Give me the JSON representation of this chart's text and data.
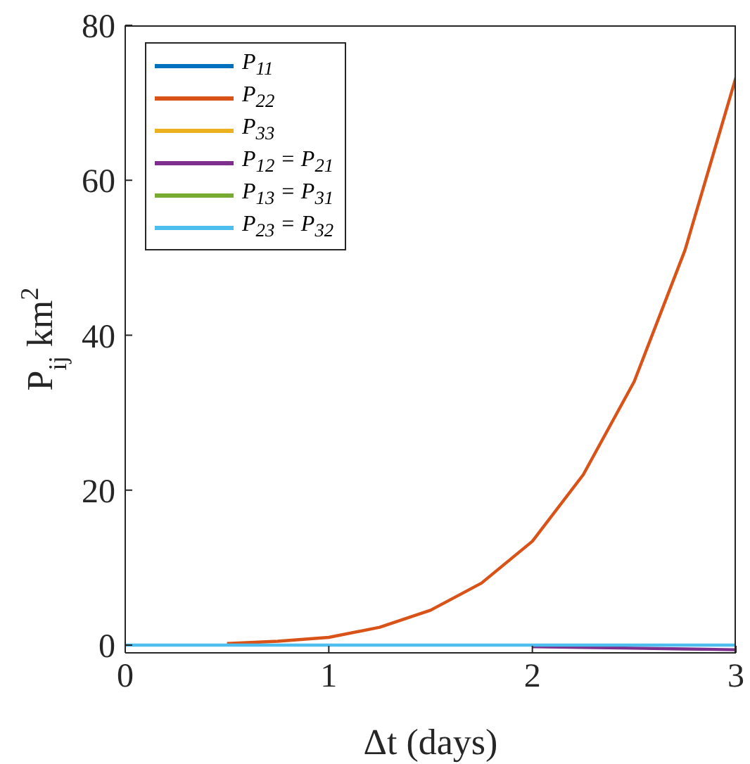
{
  "chart_data": {
    "type": "line",
    "xlabel": "Δt (days)",
    "ylabel": "P$_{ij}$ km$^{2}$",
    "x": [
      0,
      0.25,
      0.5,
      0.75,
      1,
      1.25,
      1.5,
      1.75,
      2,
      2.25,
      2.5,
      2.75,
      3
    ],
    "series": [
      {
        "name": "P$_{11}$",
        "color": "#0072bd",
        "values": [
          null,
          null,
          null,
          null,
          null,
          null,
          null,
          null,
          null,
          null,
          null,
          null,
          null
        ]
      },
      {
        "name": "P$_{22}$",
        "color": "#d95319",
        "values": [
          null,
          null,
          0.2,
          0.5,
          1,
          2.3,
          4.5,
          8,
          13.4,
          22,
          34,
          51,
          73.3
        ]
      },
      {
        "name": "P$_{33}$",
        "color": "#edb120",
        "values": [
          null,
          null,
          null,
          null,
          null,
          null,
          null,
          null,
          null,
          null,
          null,
          null,
          null
        ]
      },
      {
        "name": "P$_{12}$ = P$_{21}$",
        "color": "#7e2f8e",
        "values": [
          null,
          null,
          null,
          null,
          null,
          null,
          null,
          null,
          -0.2,
          -0.3,
          -0.4,
          -0.5,
          -0.6
        ]
      },
      {
        "name": "P$_{13}$ = P$_{31}$",
        "color": "#77ac30",
        "values": [
          null,
          null,
          null,
          null,
          null,
          null,
          null,
          null,
          null,
          null,
          null,
          null,
          null
        ]
      },
      {
        "name": "P$_{23}$ = P$_{32}$",
        "color": "#4dbeee",
        "values": [
          0,
          0,
          0,
          0,
          0,
          0,
          0,
          0,
          0,
          0,
          0,
          0,
          0
        ]
      }
    ],
    "xlim": [
      0,
      3
    ],
    "xticks": [
      0,
      1,
      2,
      3
    ],
    "ylim": [
      -1,
      80
    ],
    "yticks": [
      0,
      20,
      40,
      60,
      80
    ],
    "grid": false,
    "legend": "top left",
    "marker": "none",
    "line_style": "solid"
  }
}
